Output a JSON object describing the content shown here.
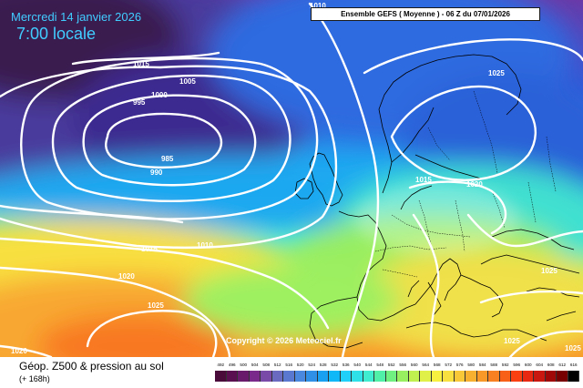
{
  "header": {
    "date": "Mercredi 14 janvier 2026",
    "local_time": "7:00 locale",
    "model_run": "Ensemble GEFS  ( Moyenne )  - 06 Z du 07/01/2026"
  },
  "copyright": "Copyright © 2026 Meteociel.fr",
  "footer": {
    "field_title": "Géop. Z500 & pression au sol",
    "lead_time": "(+ 168h)"
  },
  "isobar_labels": [
    "1010",
    "1015",
    "1005",
    "1000",
    "995",
    "985",
    "990",
    "1025",
    "1015",
    "1020",
    "1015",
    "1010",
    "1020",
    "1025",
    "1020",
    "1025",
    "1025",
    "1025"
  ],
  "scale": {
    "values": [
      "492",
      "496",
      "500",
      "504",
      "508",
      "512",
      "516",
      "520",
      "524",
      "528",
      "532",
      "536",
      "540",
      "544",
      "548",
      "552",
      "556",
      "560",
      "564",
      "568",
      "572",
      "576",
      "580",
      "584",
      "588",
      "592",
      "596",
      "600",
      "604",
      "608",
      "612",
      "616"
    ],
    "colors": [
      "#4a0a3a",
      "#5a1050",
      "#6a1a6a",
      "#7a2a8a",
      "#7a4aa8",
      "#6a6ac0",
      "#5a78d0",
      "#4a88e0",
      "#3090e8",
      "#1aa0f0",
      "#10b8f8",
      "#20d0f8",
      "#30e0e8",
      "#40ecd0",
      "#50f0a8",
      "#70f080",
      "#98f060",
      "#c0f050",
      "#e0f048",
      "#f8f040",
      "#f8e040",
      "#f8c838",
      "#f8b030",
      "#f89828",
      "#f88020",
      "#f86018",
      "#f84010",
      "#e82810",
      "#c81810",
      "#a00808",
      "#780000",
      "#000000"
    ]
  }
}
